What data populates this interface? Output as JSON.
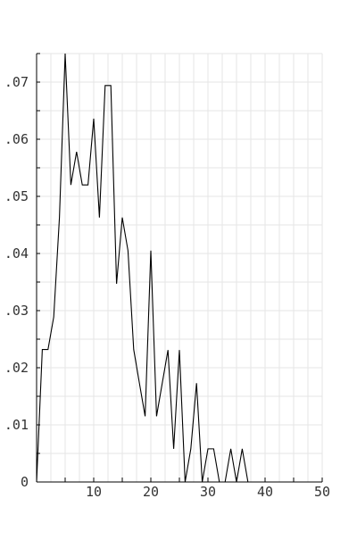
{
  "chart_data": {
    "type": "line",
    "title": "",
    "xlabel": "",
    "ylabel": "",
    "xlim": [
      0,
      50
    ],
    "ylim": [
      0,
      0.075
    ],
    "x_ticks": [
      10,
      20,
      30,
      40,
      50
    ],
    "y_ticks": [
      0,
      0.01,
      0.02,
      0.03,
      0.04,
      0.05,
      0.06,
      0.07
    ],
    "x_tick_labels": [
      "10",
      "20",
      "30",
      "40",
      "50"
    ],
    "y_tick_labels": [
      "0",
      ".01",
      ".02",
      ".03",
      ".04",
      ".05",
      ".06",
      ".07"
    ],
    "grid": true,
    "legend": "none",
    "colors": {
      "line": "#000000",
      "grid": "#e6e6e6",
      "axis": "#000000",
      "text": "#333333"
    },
    "series": [
      {
        "x": [
          0,
          1,
          2,
          3,
          4,
          5,
          6,
          7,
          8,
          9,
          10,
          11,
          12,
          13,
          14,
          15,
          16,
          17,
          18,
          19,
          20,
          21,
          22,
          23,
          24,
          25,
          26,
          27,
          28,
          29,
          30,
          31,
          32,
          33,
          34,
          35,
          36,
          37,
          38,
          39,
          40,
          41,
          42,
          43,
          44,
          45,
          46,
          47,
          48,
          49,
          50
        ],
        "values": [
          0,
          0.0232,
          0.0232,
          0.0289,
          0.0463,
          0.075,
          0.052,
          0.0578,
          0.052,
          0.052,
          0.0636,
          0.0463,
          0.0694,
          0.0694,
          0.0347,
          0.0463,
          0.0405,
          0.0232,
          0.0173,
          0.0115,
          0.0405,
          0.0115,
          0.0173,
          0.0231,
          0.0058,
          0.0231,
          0,
          0.0058,
          0.0173,
          0,
          0.0058,
          0.0058,
          0,
          0,
          0.0058,
          0,
          0.0058,
          0,
          0,
          0,
          0,
          0,
          0,
          0,
          0,
          0,
          0,
          0,
          0,
          0,
          0
        ]
      }
    ]
  }
}
